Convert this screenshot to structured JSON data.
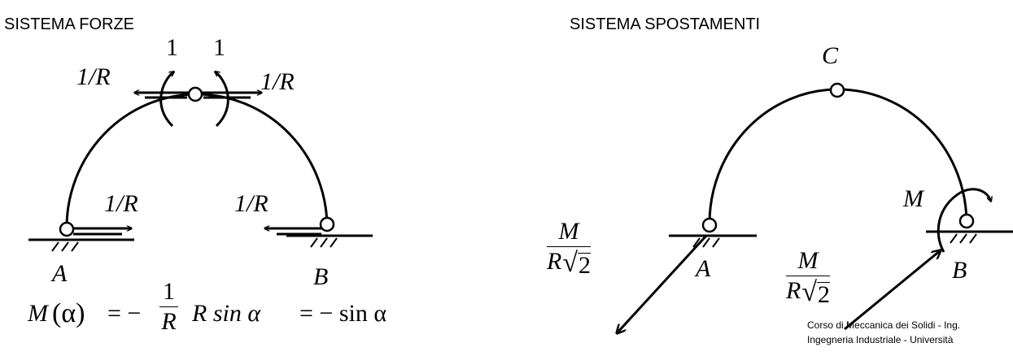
{
  "left_panel": {
    "title": "SISTEMA FORZE",
    "moment_labels": [
      "1",
      "1"
    ],
    "force_labels": {
      "top_left": "1/R",
      "top_right": "1/R",
      "support_A": "1/R",
      "support_B": "1/R"
    },
    "support_labels": {
      "a": "A",
      "b": "B"
    },
    "equation": {
      "lhs_M": "M",
      "lhs_alpha": "(α)",
      "eq1": "= −",
      "frac_num": "1",
      "frac_den": "R",
      "rhs1": "R sin α",
      "eq2": "= − sin α"
    }
  },
  "right_panel": {
    "title": "SISTEMA SPOSTAMENTI",
    "hinge_label": "C",
    "support_labels": {
      "a": "A",
      "b": "B"
    },
    "moment_label": "M",
    "frac_left": {
      "num": "M",
      "den_r": "R",
      "den_rad": "2"
    },
    "frac_right": {
      "num": "M",
      "den_r": "R",
      "den_rad": "2"
    }
  },
  "footer": {
    "line1": "Corso di Meccanica dei Solidi - Ing.",
    "line2": "Ingegneria Industriale  - Università"
  }
}
